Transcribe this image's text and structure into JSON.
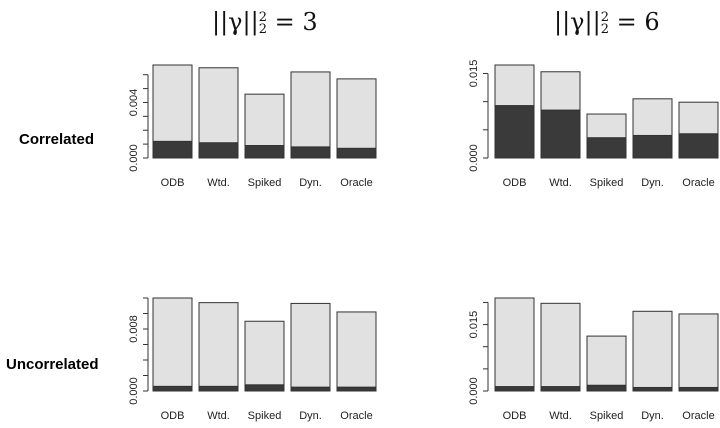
{
  "column_titles": [
    {
      "base": "||γ||",
      "sup": "2",
      "sub": "2",
      "rhs": "= 3"
    },
    {
      "base": "||γ||",
      "sup": "2",
      "sub": "2",
      "rhs": "= 6"
    }
  ],
  "row_labels": [
    "Correlated",
    "Uncorrelated"
  ],
  "colors": {
    "bar_light": "#e1e1e1",
    "bar_dark": "#3a3a3a",
    "stroke": "#333333"
  },
  "chart_data": [
    {
      "type": "bar",
      "stacked": true,
      "categories": [
        "ODB",
        "Wtd.",
        "Spiked",
        "Dyn.",
        "Oracle"
      ],
      "series": [
        {
          "values": [
            0.0012,
            0.0011,
            0.0009,
            0.0008,
            0.0007
          ]
        },
        {
          "values": [
            0.0055,
            0.0054,
            0.0037,
            0.0054,
            0.005
          ]
        }
      ],
      "yticks": [
        0.0,
        0.004
      ],
      "ytick_labels": [
        "0.000",
        "0.004"
      ],
      "minor_step": 0.001,
      "ylim": [
        0,
        0.0067
      ]
    },
    {
      "type": "bar",
      "stacked": true,
      "categories": [
        "ODB",
        "Wtd.",
        "Spiked",
        "Dyn.",
        "Oracle"
      ],
      "series": [
        {
          "values": [
            0.0093,
            0.0085,
            0.0036,
            0.004,
            0.0043
          ]
        },
        {
          "values": [
            0.0072,
            0.0068,
            0.0042,
            0.0065,
            0.0056
          ]
        }
      ],
      "yticks": [
        0.0,
        0.015
      ],
      "ytick_labels": [
        "0.000",
        "0.015"
      ],
      "minor_step": 0.005,
      "ylim": [
        0,
        0.0165
      ]
    },
    {
      "type": "bar",
      "stacked": true,
      "categories": [
        "ODB",
        "Wtd.",
        "Spiked",
        "Dyn.",
        "Oracle"
      ],
      "series": [
        {
          "values": [
            0.0006,
            0.0006,
            0.0008,
            0.0005,
            0.0005
          ]
        },
        {
          "values": [
            0.0114,
            0.0108,
            0.0082,
            0.0108,
            0.0097
          ]
        }
      ],
      "yticks": [
        0.0,
        0.008
      ],
      "ytick_labels": [
        "0.000",
        "0.008"
      ],
      "minor_step": 0.002,
      "ylim": [
        0,
        0.012
      ]
    },
    {
      "type": "bar",
      "stacked": true,
      "categories": [
        "ODB",
        "Wtd.",
        "Spiked",
        "Dyn.",
        "Oracle"
      ],
      "series": [
        {
          "values": [
            0.001,
            0.001,
            0.0013,
            0.0008,
            0.0008
          ]
        },
        {
          "values": [
            0.02,
            0.0188,
            0.0111,
            0.0172,
            0.0166
          ]
        }
      ],
      "yticks": [
        0.0,
        0.015
      ],
      "ytick_labels": [
        "0.000",
        "0.015"
      ],
      "minor_step": 0.005,
      "ylim": [
        0,
        0.021
      ]
    }
  ]
}
